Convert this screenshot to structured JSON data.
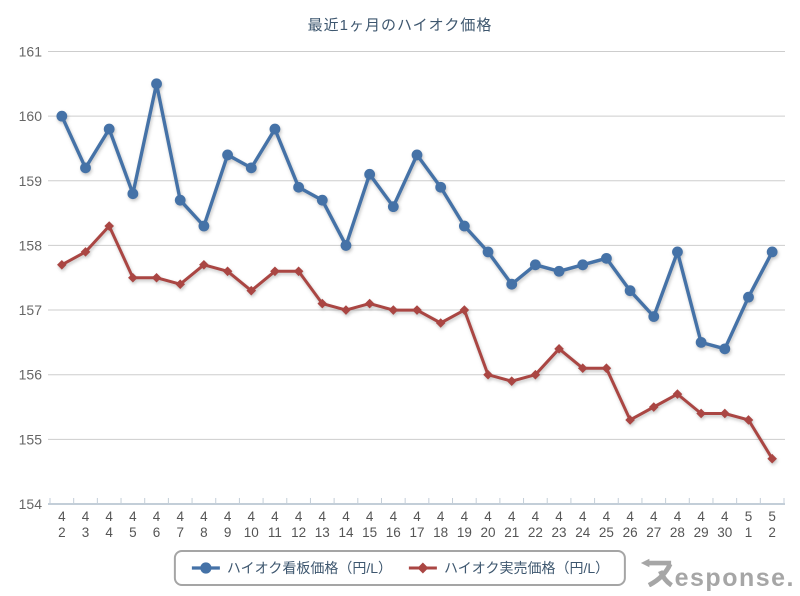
{
  "chart_data": {
    "type": "line",
    "title": "最近1ヶ月のハイオク価格",
    "xlabel": "",
    "ylabel": "",
    "ylim": [
      154,
      161
    ],
    "y_ticks": [
      154,
      155,
      156,
      157,
      158,
      159,
      160,
      161
    ],
    "grid": true,
    "legend_position": "bottom",
    "categories": [
      "4/2",
      "4/3",
      "4/4",
      "4/5",
      "4/6",
      "4/7",
      "4/8",
      "4/9",
      "4/10",
      "4/11",
      "4/12",
      "4/13",
      "4/14",
      "4/15",
      "4/16",
      "4/17",
      "4/18",
      "4/19",
      "4/20",
      "4/21",
      "4/22",
      "4/23",
      "4/24",
      "4/25",
      "4/26",
      "4/27",
      "4/28",
      "4/29",
      "4/30",
      "5/1",
      "5/2"
    ],
    "series": [
      {
        "name": "ハイオク看板価格（円/L）",
        "color": "#4572A7",
        "marker": "circle",
        "values": [
          160.0,
          159.2,
          159.8,
          158.8,
          160.5,
          158.7,
          158.3,
          159.4,
          159.2,
          159.8,
          158.9,
          158.7,
          158.0,
          159.1,
          158.6,
          159.4,
          158.9,
          158.3,
          157.9,
          157.4,
          157.7,
          157.6,
          157.7,
          157.8,
          157.3,
          156.9,
          157.9,
          156.5,
          156.4,
          157.2,
          157.9
        ]
      },
      {
        "name": "ハイオク実売価格（円/L）",
        "color": "#AA4643",
        "marker": "diamond",
        "values": [
          157.7,
          157.9,
          158.3,
          157.5,
          157.5,
          157.4,
          157.7,
          157.6,
          157.3,
          157.6,
          157.6,
          157.1,
          157.0,
          157.1,
          157.0,
          157.0,
          156.8,
          157.0,
          156.0,
          155.9,
          156.0,
          156.4,
          156.1,
          156.1,
          155.3,
          155.5,
          155.7,
          155.4,
          155.4,
          155.3,
          154.7
        ]
      }
    ]
  },
  "footer": {
    "logo_text": "Response."
  }
}
